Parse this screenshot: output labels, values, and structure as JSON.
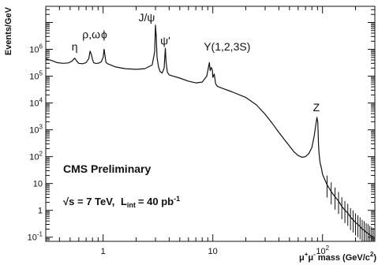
{
  "chart_data": {
    "type": "line",
    "title": "",
    "xlabel": "μ+μ- mass (GeV/c2)",
    "ylabel": "Events/GeV",
    "xscale": "log",
    "yscale": "log",
    "xlim": [
      0.3,
      300
    ],
    "ylim": [
      0.07,
      40000000
    ],
    "grid": false,
    "x_ticks": [
      {
        "value": 1,
        "label": "1"
      },
      {
        "value": 10,
        "label": "10"
      },
      {
        "value": 100,
        "label": "10",
        "exp": "2"
      }
    ],
    "y_ticks": [
      {
        "value": 0.1,
        "label": "10",
        "exp": "-1"
      },
      {
        "value": 1,
        "label": "1",
        "exp": ""
      },
      {
        "value": 10,
        "label": "10",
        "exp": ""
      },
      {
        "value": 100,
        "label": "10",
        "exp": "2"
      },
      {
        "value": 1000,
        "label": "10",
        "exp": "3"
      },
      {
        "value": 10000,
        "label": "10",
        "exp": "4"
      },
      {
        "value": 100000,
        "label": "10",
        "exp": "5"
      },
      {
        "value": 1000000,
        "label": "10",
        "exp": "6"
      }
    ],
    "series": [
      {
        "x": [
          0.3,
          0.34,
          0.38,
          0.43,
          0.48,
          0.52,
          0.55,
          0.57,
          0.6,
          0.65,
          0.7,
          0.74,
          0.76,
          0.78,
          0.8,
          0.82,
          0.85,
          0.9,
          0.96,
          1.0,
          1.02,
          1.04,
          1.06,
          1.1,
          1.3,
          1.6,
          2.0,
          2.4,
          2.8,
          2.95,
          3.0,
          3.05,
          3.1,
          3.2,
          3.3,
          3.45,
          3.6,
          3.69,
          3.75,
          3.85,
          4.0,
          5.0,
          6.0,
          7.0,
          8.0,
          8.8,
          9.3,
          9.45,
          9.7,
          9.9,
          10.0,
          10.3,
          10.6,
          11.0,
          12.0,
          15.0,
          20.0,
          25.0,
          30.0,
          35.0,
          40.0,
          45.0,
          50.0,
          55.0,
          60.0,
          65.0,
          70.0,
          75.0,
          80.0,
          84.0,
          87.0,
          89.0,
          90.5,
          91.2,
          92.0,
          93.0,
          95.0,
          98.0,
          100.0,
          105.0,
          110.0,
          120.0,
          130.0,
          140.0,
          150.0,
          160.0,
          170.0,
          180.0,
          190.0,
          200.0,
          210.0,
          220.0,
          230.0,
          240.0,
          250.0,
          260.0,
          270.0,
          280.0,
          290.0
        ],
        "y": [
          450000,
          380000,
          320000,
          300000,
          310000,
          360000,
          470000,
          380000,
          300000,
          290000,
          320000,
          450000,
          850000,
          650000,
          420000,
          320000,
          300000,
          300000,
          340000,
          500000,
          1000000,
          600000,
          330000,
          290000,
          220000,
          190000,
          180000,
          190000,
          260000,
          800000,
          8000000,
          3000000,
          500000,
          220000,
          150000,
          130000,
          200000,
          1100000,
          330000,
          140000,
          110000,
          85000,
          65000,
          56000,
          60000,
          100000,
          320000,
          160000,
          210000,
          170000,
          90000,
          120000,
          52000,
          42000,
          36000,
          26000,
          16000,
          8500,
          3800,
          1700,
          800,
          430,
          250,
          150,
          110,
          95,
          100,
          130,
          220,
          600,
          1600,
          2900,
          1900,
          850,
          300,
          130,
          60,
          35,
          22,
          14,
          9,
          5,
          3.2,
          2.2,
          1.4,
          1.0,
          0.8,
          0.55,
          0.45,
          0.35,
          0.3,
          0.25,
          0.2,
          0.18,
          0.15,
          0.14,
          0.12,
          0.11,
          0.1
        ]
      }
    ],
    "annotations": [
      {
        "text": "η",
        "x": 0.55,
        "y": 900000
      },
      {
        "text": "ρ,ω",
        "x": 0.78,
        "y": 2600000
      },
      {
        "text": "ϕ",
        "x": 1.02,
        "y": 2600000
      },
      {
        "text": "J/ψ",
        "x": 2.5,
        "y": 11000000
      },
      {
        "text": "ψ'",
        "x": 3.69,
        "y": 1500000
      },
      {
        "text": "Υ(1,2,3S)",
        "x": 13.5,
        "y": 900000
      },
      {
        "text": "Z",
        "x": 88.0,
        "y": 5000
      }
    ],
    "labels": {
      "experiment": "CMS Preliminary",
      "energy_sqrt": "√s",
      "energy_value": "= 7 TeV,",
      "lumi_L": "L",
      "lumi_sub": "int",
      "lumi_value": "= 40 pb",
      "lumi_exp": "-1"
    }
  }
}
